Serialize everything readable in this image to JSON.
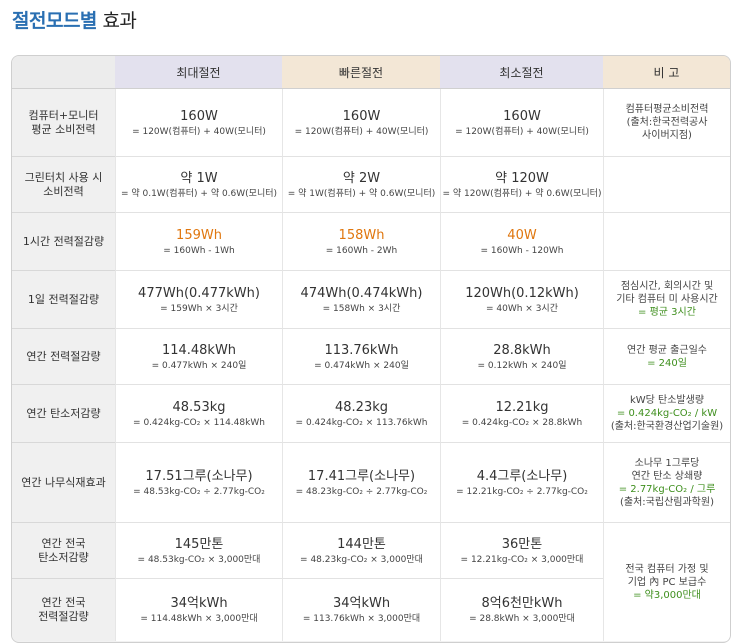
{
  "title": {
    "part1": "절전모드별",
    "part2": "효과"
  },
  "headers": [
    "",
    "최대절전",
    "빠른절전",
    "최소절전",
    "비 고"
  ],
  "rows": [
    {
      "label": [
        "컴퓨터+모니터",
        "평균 소비전력"
      ],
      "cells": [
        {
          "main": "160W",
          "sub": "= 120W(컴퓨터) + 40W(모니터)"
        },
        {
          "main": "160W",
          "sub": "= 120W(컴퓨터) + 40W(모니터)"
        },
        {
          "main": "160W",
          "sub": "= 120W(컴퓨터) + 40W(모니터)"
        }
      ],
      "note": [
        "컴퓨터평균소비전력",
        "(출처:한국전력공사",
        "사이버지점)"
      ]
    },
    {
      "label": [
        "그린터치 사용 시",
        "소비전력"
      ],
      "cells": [
        {
          "main": "약 1W",
          "sub": "= 약 0.1W(컴퓨터) + 약 0.6W(모니터)"
        },
        {
          "main": "약 2W",
          "sub": "= 약 1W(컴퓨터) + 약 0.6W(모니터)"
        },
        {
          "main": "약 120W",
          "sub": "= 약 120W(컴퓨터) + 약 0.6W(모니터)"
        }
      ],
      "note": []
    },
    {
      "label": [
        "1시간 전력절감량"
      ],
      "cells": [
        {
          "main": "159Wh",
          "sub": "= 160Wh - 1Wh"
        },
        {
          "main": "158Wh",
          "sub": "= 160Wh - 2Wh"
        },
        {
          "main": "40W",
          "sub": "= 160Wh - 120Wh"
        }
      ],
      "note": []
    },
    {
      "label": [
        "1일 전력절감량"
      ],
      "cells": [
        {
          "main": "477Wh(0.477kWh)",
          "sub": "= 159Wh × 3시간"
        },
        {
          "main": "474Wh(0.474kWh)",
          "sub": "= 158Wh × 3시간"
        },
        {
          "main": "120Wh(0.12kWh)",
          "sub": "= 40Wh × 3시간"
        }
      ],
      "note": [
        "점심시간, 회의시간 및",
        "기타 컴퓨터 미 사용시간"
      ],
      "note_highlight": "= 평균 3시간"
    },
    {
      "label": [
        "연간 전력절감량"
      ],
      "cells": [
        {
          "main": "114.48kWh",
          "sub": "= 0.477kWh × 240일"
        },
        {
          "main": "113.76kWh",
          "sub": "= 0.474kWh × 240일"
        },
        {
          "main": "28.8kWh",
          "sub": "= 0.12kWh × 240일"
        }
      ],
      "note": [
        "연간 평균 출근일수"
      ],
      "note_highlight": "= 240일"
    },
    {
      "label": [
        "연간 탄소저감량"
      ],
      "cells": [
        {
          "main": "48.53kg",
          "sub": "= 0.424kg-CO₂ × 114.48kWh"
        },
        {
          "main": "48.23kg",
          "sub": "= 0.424kg-CO₂ × 113.76kWh"
        },
        {
          "main": "12.21kg",
          "sub": "= 0.424kg-CO₂ × 28.8kWh"
        }
      ],
      "note": [
        "kW당 탄소발생량"
      ],
      "note_highlight": "= 0.424kg-CO₂ / kW",
      "note_after": [
        "(출처:한국환경산업기술원)"
      ]
    },
    {
      "label": [
        "연간 나무식재효과"
      ],
      "cells": [
        {
          "main": "17.51그루(소나무)",
          "sub": "= 48.53kg-CO₂ ÷ 2.77kg-CO₂"
        },
        {
          "main": "17.41그루(소나무)",
          "sub": "= 48.23kg-CO₂ ÷ 2.77kg-CO₂"
        },
        {
          "main": "4.4그루(소나무)",
          "sub": "= 12.21kg-CO₂ ÷ 2.77kg-CO₂"
        }
      ],
      "note": [
        "소나무 1그루당",
        "연간 탄소 상쇄량"
      ],
      "note_highlight": "= 2.77kg-CO₂ / 그루",
      "note_after": [
        "(출처:국립산림과학원)"
      ]
    },
    {
      "label": [
        "연간 전국",
        "탄소저감량"
      ],
      "cells": [
        {
          "main": "145만톤",
          "sub": "= 48.53kg-CO₂ × 3,000만대"
        },
        {
          "main": "144만톤",
          "sub": "= 48.23kg-CO₂ × 3,000만대"
        },
        {
          "main": "36만톤",
          "sub": "= 12.21kg-CO₂ × 3,000만대"
        }
      ]
    },
    {
      "label": [
        "연간 전국",
        "전력절감량"
      ],
      "cells": [
        {
          "main": "34억kWh",
          "sub": "= 114.48kWh × 3,000만대"
        },
        {
          "main": "34억kWh",
          "sub": "= 113.76kWh × 3,000만대"
        },
        {
          "main": "8억6천만kWh",
          "sub": "= 28.8kWh × 3,000만대"
        }
      ]
    }
  ],
  "merged_note": {
    "lines": [
      "전국 컴퓨터 가정 및",
      "기업 內 PC 보급수"
    ],
    "highlight": "= 약3,000만대"
  },
  "colors": {
    "title_blue": "#2a6fb2",
    "orange": "#e0770f",
    "green": "#3f8f1e"
  }
}
